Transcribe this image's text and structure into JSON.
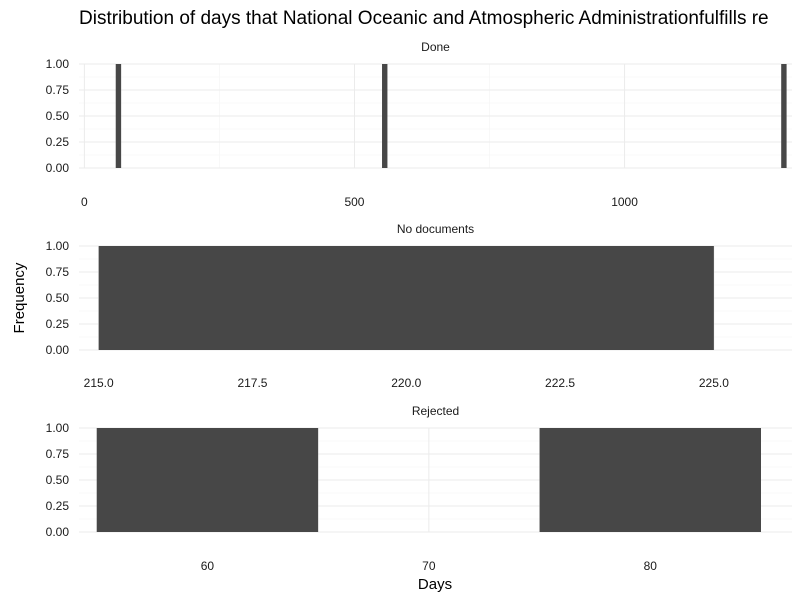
{
  "chart_data": {
    "type": "bar",
    "title": "Distribution of days that National Oceanic and Atmospheric Administrationfulfills re",
    "xlabel": "Days",
    "ylabel": "Frequency",
    "grid": true,
    "legend": "none",
    "bar_color": "#474747",
    "facets": [
      {
        "label": "Done",
        "xlim": [
          -10,
          1310
        ],
        "xticks": [
          0,
          500,
          1000
        ],
        "xtick_labels": [
          "0",
          "500",
          "1000"
        ],
        "ylim": [
          0,
          1
        ],
        "yticks": [
          0,
          0.25,
          0.5,
          0.75,
          1
        ],
        "ytick_labels": [
          "0.00",
          "0.25",
          "0.50",
          "0.75",
          "1.00"
        ],
        "bars": [
          {
            "x0": 58,
            "x1": 68,
            "count": 1
          },
          {
            "x0": 551,
            "x1": 561,
            "count": 1
          },
          {
            "x0": 1290,
            "x1": 1300,
            "count": 1
          }
        ]
      },
      {
        "label": "No documents",
        "xlim": [
          214.68,
          226.27
        ],
        "xticks": [
          215,
          217.5,
          220,
          222.5,
          225
        ],
        "xtick_labels": [
          "215.0",
          "217.5",
          "220.0",
          "222.5",
          "225.0"
        ],
        "ylim": [
          0,
          1
        ],
        "yticks": [
          0,
          0.25,
          0.5,
          0.75,
          1
        ],
        "ytick_labels": [
          "0.00",
          "0.25",
          "0.50",
          "0.75",
          "1.00"
        ],
        "bars": [
          {
            "x0": 215,
            "x1": 225,
            "count": 1
          }
        ]
      },
      {
        "label": "Rejected",
        "xlim": [
          54.2,
          86.4
        ],
        "xticks": [
          60,
          70,
          80
        ],
        "xtick_labels": [
          "60",
          "70",
          "80"
        ],
        "ylim": [
          0,
          1
        ],
        "yticks": [
          0,
          0.25,
          0.5,
          0.75,
          1
        ],
        "ytick_labels": [
          "0.00",
          "0.25",
          "0.50",
          "0.75",
          "1.00"
        ],
        "bars": [
          {
            "x0": 55,
            "x1": 65,
            "count": 1
          },
          {
            "x0": 75,
            "x1": 85,
            "count": 1
          }
        ]
      }
    ]
  }
}
